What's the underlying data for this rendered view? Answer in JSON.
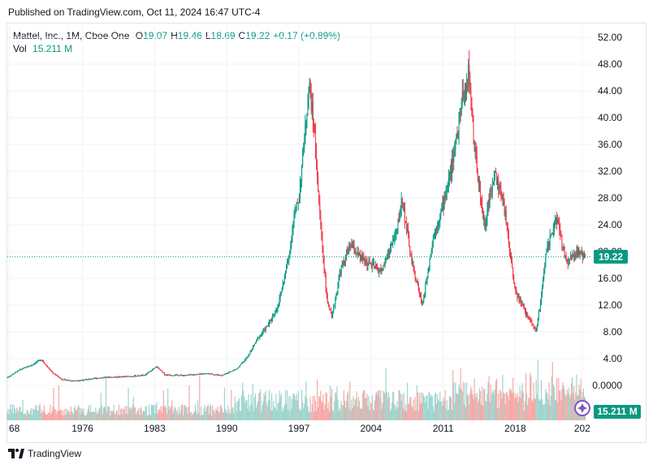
{
  "header": {
    "published": "Published on TradingView.com, Oct 11, 2024 16:47 UTC-4"
  },
  "legend": {
    "symbol": "Mattel, Inc., 1M, Cboe One",
    "open_label": "O",
    "open": "19.07",
    "high_label": "H",
    "high": "19.46",
    "low_label": "L",
    "low": "18.69",
    "close_label": "C",
    "close": "19.22",
    "change": "+0.17 (+0.89%)",
    "vol_label": "Vol",
    "vol": "15.211 M"
  },
  "price_badge": "19.22",
  "vol_badge": "15.211 M",
  "footer": {
    "brand": "TradingView"
  },
  "colors": {
    "up": "#089981",
    "down": "#f23645",
    "vol_up": "#9fd5cd",
    "vol_down": "#f7a9a7",
    "price_line": "#089981"
  },
  "chart_data": {
    "type": "candlestick",
    "title": "Mattel, Inc., 1M, Cboe One",
    "y_ticks": [
      "52.00",
      "48.00",
      "44.00",
      "40.00",
      "36.00",
      "32.00",
      "28.00",
      "24.00",
      "20.00",
      "16.00",
      "12.00",
      "8.00",
      "4.00",
      "0.0000"
    ],
    "x_ticks": [
      "68",
      "1976",
      "1983",
      "1990",
      "1997",
      "2004",
      "2011",
      "2018",
      "202"
    ],
    "ylim": [
      0,
      54
    ],
    "xlim": [
      1968.7,
      2025.3
    ],
    "last_close": 19.22,
    "price_series": [
      {
        "x": 1968.7,
        "y": 1.2
      },
      {
        "x": 1970.0,
        "y": 2.4
      },
      {
        "x": 1971.0,
        "y": 3.0
      },
      {
        "x": 1972.0,
        "y": 3.9
      },
      {
        "x": 1973.0,
        "y": 2.0
      },
      {
        "x": 1974.0,
        "y": 0.9
      },
      {
        "x": 1975.0,
        "y": 0.7
      },
      {
        "x": 1976.0,
        "y": 0.8
      },
      {
        "x": 1978.0,
        "y": 1.2
      },
      {
        "x": 1980.0,
        "y": 1.3
      },
      {
        "x": 1982.0,
        "y": 1.5
      },
      {
        "x": 1983.2,
        "y": 2.8
      },
      {
        "x": 1984.0,
        "y": 1.6
      },
      {
        "x": 1986.0,
        "y": 1.5
      },
      {
        "x": 1988.0,
        "y": 1.8
      },
      {
        "x": 1989.5,
        "y": 1.5
      },
      {
        "x": 1991.0,
        "y": 2.5
      },
      {
        "x": 1992.0,
        "y": 4.2
      },
      {
        "x": 1993.0,
        "y": 7.0
      },
      {
        "x": 1994.0,
        "y": 9.0
      },
      {
        "x": 1995.0,
        "y": 12.0
      },
      {
        "x": 1996.0,
        "y": 19.0
      },
      {
        "x": 1996.5,
        "y": 25.0
      },
      {
        "x": 1997.0,
        "y": 28.0
      },
      {
        "x": 1997.6,
        "y": 38.0
      },
      {
        "x": 1998.0,
        "y": 45.0
      },
      {
        "x": 1998.5,
        "y": 38.0
      },
      {
        "x": 1999.0,
        "y": 26.0
      },
      {
        "x": 1999.7,
        "y": 13.0
      },
      {
        "x": 2000.2,
        "y": 10.0
      },
      {
        "x": 2001.0,
        "y": 17.0
      },
      {
        "x": 2002.0,
        "y": 21.0
      },
      {
        "x": 2003.0,
        "y": 19.0
      },
      {
        "x": 2004.0,
        "y": 18.0
      },
      {
        "x": 2005.0,
        "y": 17.0
      },
      {
        "x": 2006.5,
        "y": 23.0
      },
      {
        "x": 2007.0,
        "y": 28.0
      },
      {
        "x": 2008.0,
        "y": 18.0
      },
      {
        "x": 2009.0,
        "y": 12.0
      },
      {
        "x": 2010.0,
        "y": 22.0
      },
      {
        "x": 2011.0,
        "y": 27.0
      },
      {
        "x": 2012.0,
        "y": 34.0
      },
      {
        "x": 2013.0,
        "y": 44.0
      },
      {
        "x": 2013.5,
        "y": 47.0
      },
      {
        "x": 2014.0,
        "y": 36.0
      },
      {
        "x": 2015.0,
        "y": 24.0
      },
      {
        "x": 2016.0,
        "y": 32.0
      },
      {
        "x": 2017.0,
        "y": 26.0
      },
      {
        "x": 2018.0,
        "y": 14.0
      },
      {
        "x": 2019.0,
        "y": 11.0
      },
      {
        "x": 2020.0,
        "y": 8.0
      },
      {
        "x": 2020.5,
        "y": 13.0
      },
      {
        "x": 2021.0,
        "y": 20.0
      },
      {
        "x": 2022.0,
        "y": 25.0
      },
      {
        "x": 2023.0,
        "y": 18.0
      },
      {
        "x": 2024.0,
        "y": 20.0
      },
      {
        "x": 2024.8,
        "y": 19.22
      }
    ]
  }
}
